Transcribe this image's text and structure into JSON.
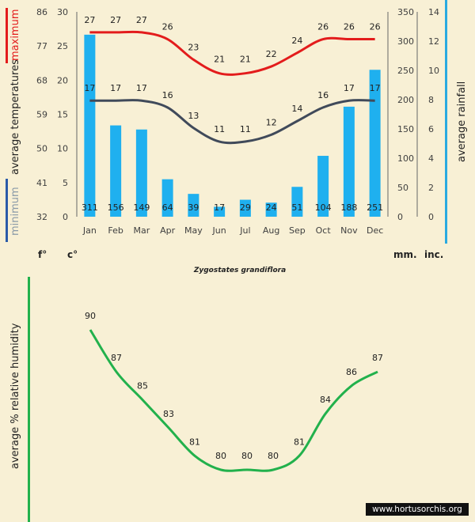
{
  "colors": {
    "background": "#f8f0d5",
    "max_line": "#e31c1c",
    "min_line": "#404a5a",
    "rain_bar": "#1fb0ef",
    "humidity_line": "#22b14c",
    "min_bar": "#2a5aa8",
    "rain_axis": "#2aaae0"
  },
  "labels": {
    "maximum": "maximum",
    "minimum": "minimum",
    "avg_temps": "average temperatures",
    "avg_rainfall": "average rainfall",
    "unit_f": "f°",
    "unit_c": "c°",
    "unit_mm": "mm.",
    "unit_inc": "inc.",
    "species": "Zygostates grandiflora",
    "humidity_axis": "average %  relative humidity",
    "watermark": "www.hortusorchis.org"
  },
  "chart_data": [
    {
      "type": "bar+line",
      "title": "Zygostates grandiflora",
      "categories": [
        "Jan",
        "Feb",
        "Mar",
        "Apr",
        "May",
        "Jun",
        "Jul",
        "Aug",
        "Sep",
        "Oct",
        "Nov",
        "Dec"
      ],
      "series": [
        {
          "name": "maximum",
          "unit": "°C",
          "values": [
            27,
            27,
            27,
            26,
            23,
            21,
            21,
            22,
            24,
            26,
            26,
            26
          ]
        },
        {
          "name": "minimum",
          "unit": "°C",
          "values": [
            17,
            17,
            17,
            16,
            13,
            11,
            11,
            12,
            14,
            16,
            17,
            17
          ]
        },
        {
          "name": "average rainfall",
          "unit": "mm",
          "values": [
            311,
            156,
            149,
            64,
            39,
            17,
            29,
            24,
            51,
            104,
            188,
            251
          ]
        }
      ],
      "y_left_c": {
        "ylim": [
          0,
          30
        ],
        "ticks": [
          0,
          5,
          10,
          15,
          20,
          25,
          30
        ]
      },
      "y_left_f": {
        "ylim": [
          32,
          86
        ],
        "ticks": [
          32,
          41,
          50,
          59,
          68,
          77,
          86
        ]
      },
      "y_right_mm": {
        "ylim": [
          0,
          350
        ],
        "ticks": [
          0,
          50,
          100,
          150,
          200,
          250,
          300,
          350
        ]
      },
      "y_right_inc": {
        "ylim": [
          0,
          14
        ],
        "ticks": [
          0,
          2,
          4,
          6,
          8,
          10,
          12,
          14
        ]
      }
    },
    {
      "type": "line",
      "ylabel": "average %  relative humidity",
      "categories": [
        "Jan",
        "Feb",
        "Mar",
        "Apr",
        "May",
        "Jun",
        "Jul",
        "Aug",
        "Sep",
        "Oct",
        "Nov",
        "Dec"
      ],
      "series": [
        {
          "name": "relative humidity",
          "unit": "%",
          "values": [
            90,
            87,
            85,
            83,
            81,
            80,
            80,
            80,
            81,
            84,
            86,
            87
          ]
        }
      ],
      "ylim": [
        74,
        94
      ]
    }
  ]
}
